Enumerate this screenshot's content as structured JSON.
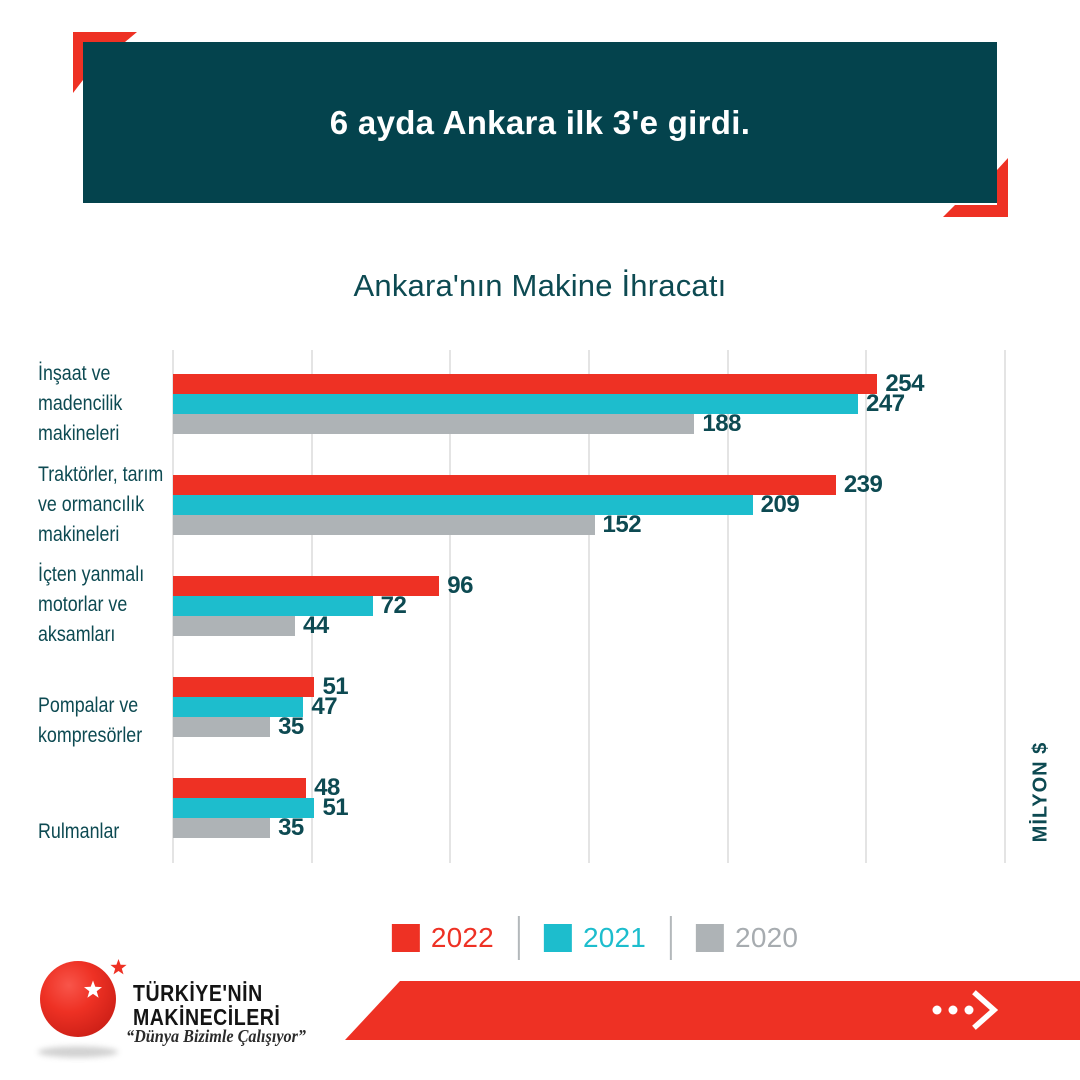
{
  "header": {
    "title": "6 ayda Ankara ilk 3'e girdi."
  },
  "chart": {
    "title": "Ankara'nın Makine İhracatı",
    "unit_label": "MİLYON $",
    "category_display_lines": [
      [
        "İnşaat ve",
        "madencilik",
        "makineleri"
      ],
      [
        "Traktörler, tarım",
        "ve ormancılık",
        "makineleri"
      ],
      [
        "İçten yanmalı",
        "motorlar ve",
        "aksamları"
      ],
      [
        "Pompalar ve",
        "kompresörler"
      ],
      [
        "Rulmanlar"
      ]
    ]
  },
  "chart_data": {
    "type": "bar",
    "orientation": "horizontal",
    "title": "Ankara'nın Makine İhracatı",
    "categories": [
      "İnşaat ve madencilik makineleri",
      "Traktörler, tarım ve ormancılık makineleri",
      "İçten yanmalı motorlar ve aksamları",
      "Pompalar ve kompresörler",
      "Rulmanlar"
    ],
    "series": [
      {
        "name": "2022",
        "color": "#ee3124",
        "values": [
          254,
          239,
          96,
          51,
          48
        ]
      },
      {
        "name": "2021",
        "color": "#1dbdcd",
        "values": [
          247,
          209,
          72,
          47,
          51
        ]
      },
      {
        "name": "2020",
        "color": "#aeb3b6",
        "values": [
          188,
          152,
          44,
          35,
          35
        ]
      }
    ],
    "xlabel": "MİLYON $",
    "xlim": [
      0,
      300
    ],
    "gridline_step": 50,
    "grid": true,
    "legend_position": "bottom",
    "value_labels": true
  },
  "legend": {
    "items": [
      {
        "label": "2022",
        "color": "#ee3124",
        "text_color": "#ee3124"
      },
      {
        "label": "2021",
        "color": "#1dbdcd",
        "text_color": "#1dbdcd"
      },
      {
        "label": "2020",
        "color": "#aeb3b6",
        "text_color": "#a7acb0"
      }
    ]
  },
  "footer": {
    "logo_title_line1": "TÜRKİYE'NİN",
    "logo_title_line2": "MAKİNECİLERİ",
    "logo_tagline": "“Dünya Bizimle Çalışıyor”"
  },
  "colors": {
    "accent_red": "#ee3124",
    "accent_teal": "#1dbdcd",
    "accent_gray": "#aeb3b6",
    "header_bg": "#04434d",
    "text_dark_teal": "#0d4a52",
    "gridline": "#e4e4e4"
  }
}
